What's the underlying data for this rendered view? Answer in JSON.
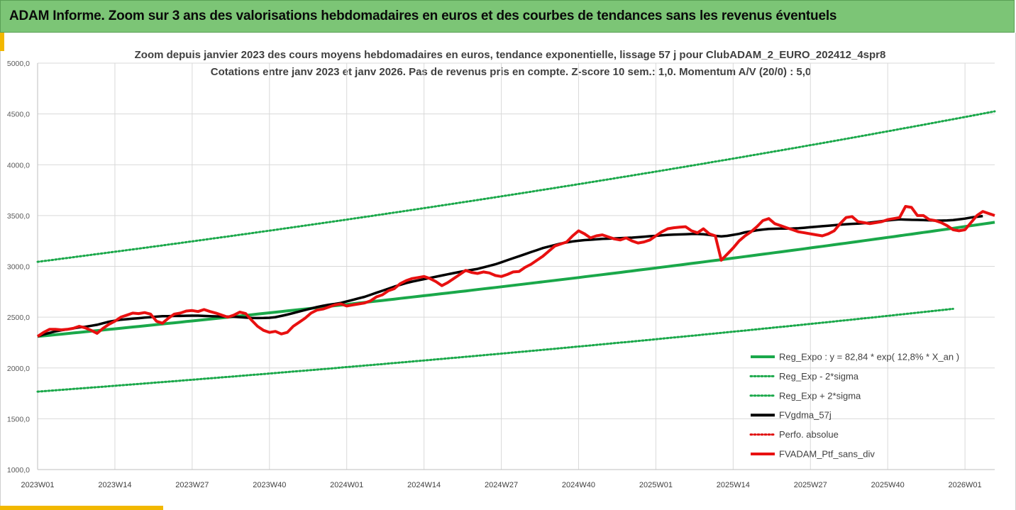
{
  "banner": {
    "title": "ADAM Informe. Zoom sur 3 ans des valorisations hebdomadaires en euros et des courbes de tendances sans les revenus éventuels"
  },
  "colors": {
    "banner_bg": "#7cc576",
    "accent": "#f2b800",
    "reg_expo": "#1aa84a",
    "bands": "#1aa84a",
    "fvgdma": "#000000",
    "perfo": "#e01010",
    "fvadam": "#e81010",
    "grid": "#d9d9d9"
  },
  "chart_data": {
    "type": "line",
    "title_line1": "Zoom depuis janvier 2023 des cours moyens hebdomadaires  en euros, tendance exponentielle, lissage 57 j pour ClubADAM_2_EURO_202412_4spr8",
    "title_line2": "Cotations entre janv 2023 et janv 2026. Pas de revenus pris en compte. Z-score 10 sem.: 1,0. Momentum A/V (20/0) : 5,0",
    "ylim": [
      1000,
      5000
    ],
    "ytick_labels": [
      "1000,0",
      "1500,0",
      "2000,0",
      "2500,0",
      "3000,0",
      "3500,0",
      "4000,0",
      "4500,0",
      "5000,0"
    ],
    "xlim": [
      0,
      161
    ],
    "xtick_positions": [
      0,
      13,
      26,
      39,
      52,
      65,
      78,
      91,
      104,
      117,
      130,
      143,
      156
    ],
    "xtick_labels": [
      "2023W01",
      "2023W14",
      "2023W27",
      "2023W40",
      "2024W01",
      "2024W14",
      "2024W27",
      "2024W40",
      "2025W01",
      "2025W14",
      "2025W27",
      "2025W40",
      "2026W01"
    ],
    "regression": {
      "a": 2310,
      "rate_per_year": 0.128,
      "weeks_per_year": 52,
      "sigma_factor_low": 0.765,
      "sigma_factor_high": 1.318
    },
    "series": [
      {
        "name": "Reg_Expo : y = 82,84 * exp( 12,8% *  X_an )",
        "style": "solid",
        "color_key": "reg_expo"
      },
      {
        "name": "Reg_Exp - 2*sigma",
        "style": "dotted",
        "color_key": "bands"
      },
      {
        "name": "Reg_Exp + 2*sigma",
        "style": "dotted",
        "color_key": "bands"
      },
      {
        "name": "FVgdma_57j",
        "style": "solid",
        "color_key": "fvgdma",
        "values": [
          2310,
          2330,
          2345,
          2360,
          2370,
          2380,
          2390,
          2400,
          2405,
          2415,
          2425,
          2440,
          2455,
          2465,
          2475,
          2480,
          2485,
          2490,
          2495,
          2500,
          2505,
          2510,
          2510,
          2512,
          2512,
          2514,
          2515,
          2515,
          2512,
          2510,
          2508,
          2506,
          2505,
          2504,
          2500,
          2495,
          2492,
          2491,
          2492,
          2494,
          2500,
          2512,
          2525,
          2540,
          2555,
          2570,
          2585,
          2600,
          2612,
          2622,
          2630,
          2640,
          2655,
          2670,
          2685,
          2700,
          2720,
          2740,
          2760,
          2780,
          2800,
          2818,
          2835,
          2850,
          2862,
          2874,
          2886,
          2898,
          2910,
          2922,
          2934,
          2945,
          2955,
          2965,
          2975,
          2990,
          3005,
          3020,
          3040,
          3060,
          3080,
          3100,
          3120,
          3140,
          3160,
          3180,
          3195,
          3210,
          3225,
          3235,
          3245,
          3252,
          3258,
          3262,
          3266,
          3270,
          3272,
          3275,
          3278,
          3280,
          3283,
          3287,
          3292,
          3297,
          3300,
          3305,
          3310,
          3312,
          3314,
          3316,
          3318,
          3318,
          3316,
          3310,
          3300,
          3295,
          3300,
          3310,
          3320,
          3335,
          3345,
          3355,
          3362,
          3368,
          3370,
          3372,
          3372,
          3373,
          3375,
          3380,
          3385,
          3390,
          3395,
          3400,
          3405,
          3410,
          3415,
          3418,
          3420,
          3425,
          3430,
          3438,
          3445,
          3452,
          3458,
          3462,
          3460,
          3458,
          3457,
          3455,
          3453,
          3450,
          3450,
          3452,
          3455,
          3462,
          3470,
          3480,
          3488,
          3495
        ]
      },
      {
        "name": "Perfo. absolue",
        "style": "dotted",
        "color_key": "perfo"
      },
      {
        "name": "FVADAM_Ptf_sans_div",
        "style": "solid",
        "color_key": "fvadam",
        "values": [
          2310,
          2350,
          2380,
          2380,
          2375,
          2380,
          2390,
          2410,
          2395,
          2370,
          2340,
          2390,
          2430,
          2460,
          2500,
          2520,
          2540,
          2535,
          2545,
          2530,
          2460,
          2440,
          2490,
          2530,
          2540,
          2560,
          2565,
          2555,
          2575,
          2555,
          2540,
          2520,
          2500,
          2520,
          2550,
          2535,
          2470,
          2410,
          2370,
          2350,
          2360,
          2335,
          2350,
          2410,
          2450,
          2490,
          2540,
          2570,
          2580,
          2600,
          2620,
          2630,
          2610,
          2620,
          2630,
          2640,
          2660,
          2700,
          2720,
          2760,
          2780,
          2830,
          2860,
          2880,
          2890,
          2900,
          2880,
          2850,
          2810,
          2840,
          2880,
          2920,
          2960,
          2940,
          2930,
          2945,
          2935,
          2910,
          2900,
          2920,
          2945,
          2950,
          2990,
          3020,
          3060,
          3100,
          3150,
          3200,
          3220,
          3240,
          3300,
          3350,
          3320,
          3280,
          3300,
          3310,
          3290,
          3270,
          3260,
          3280,
          3250,
          3230,
          3240,
          3260,
          3300,
          3340,
          3370,
          3380,
          3385,
          3390,
          3350,
          3330,
          3370,
          3320,
          3300,
          3060,
          3120,
          3180,
          3250,
          3300,
          3340,
          3390,
          3450,
          3470,
          3420,
          3400,
          3380,
          3360,
          3340,
          3330,
          3320,
          3310,
          3300,
          3320,
          3350,
          3420,
          3480,
          3490,
          3440,
          3430,
          3420,
          3430,
          3440,
          3460,
          3470,
          3480,
          3590,
          3580,
          3500,
          3500,
          3460,
          3450,
          3430,
          3400,
          3360,
          3350,
          3360,
          3430,
          3500,
          3540,
          3520,
          3500
        ]
      }
    ]
  }
}
